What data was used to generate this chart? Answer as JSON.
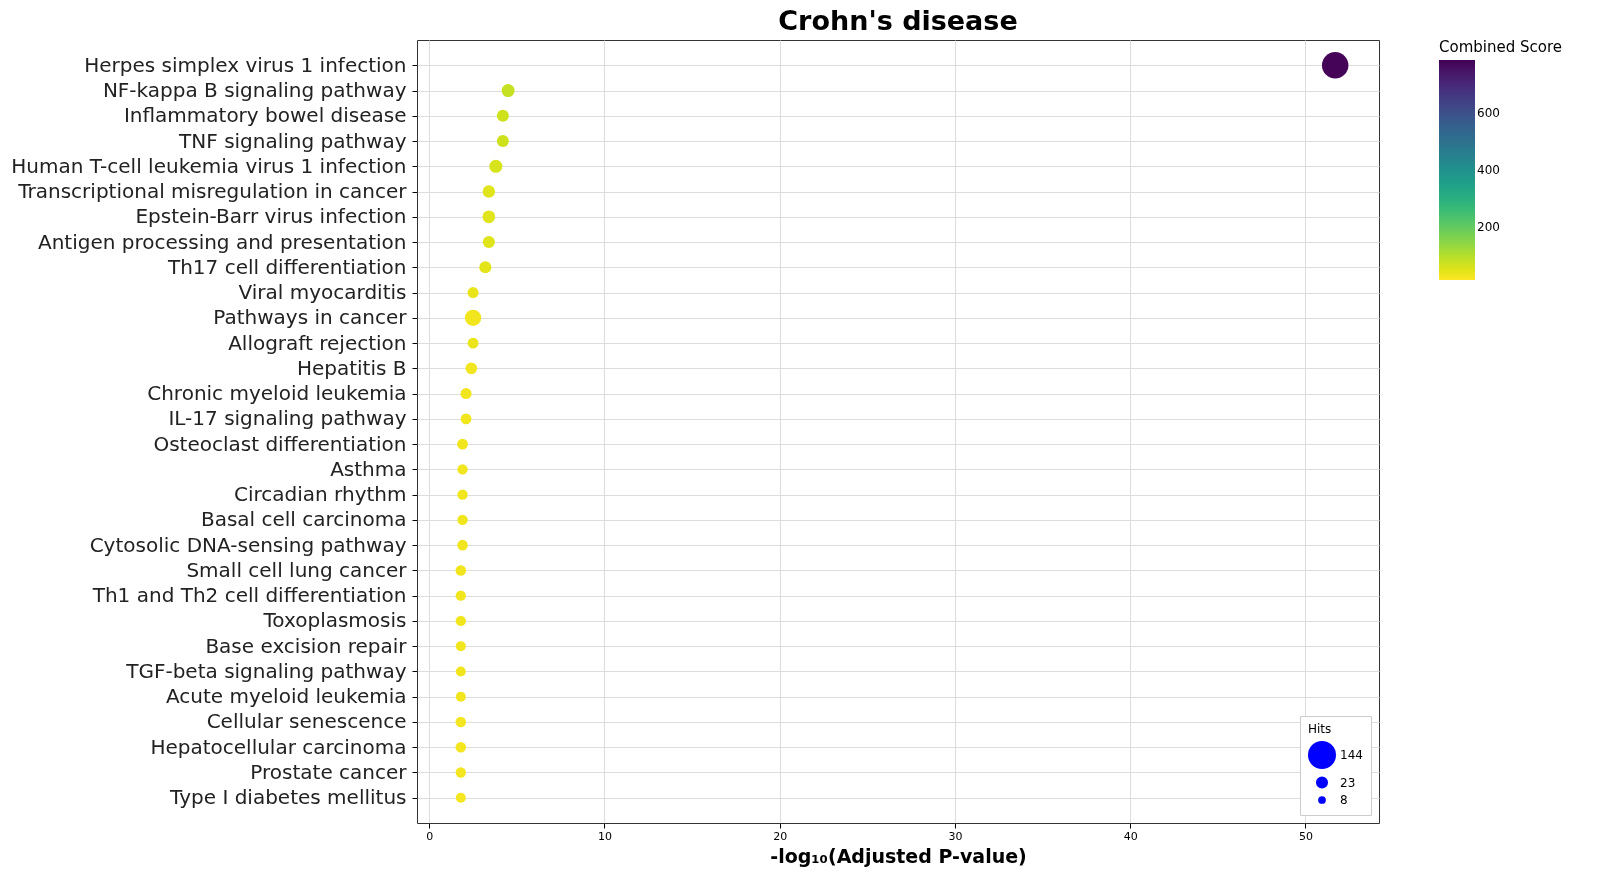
{
  "chart_data": {
    "type": "bubble",
    "title": "Crohn's disease",
    "xlabel": "-log₁₀(Adjusted P-value)",
    "clabel": "Combined Score",
    "legend_title": "Hits",
    "categories": [
      "Herpes simplex virus 1 infection",
      "NF-kappa B signaling pathway",
      "Inflammatory bowel disease",
      "TNF signaling pathway",
      "Human T-cell leukemia virus 1 infection",
      "Transcriptional misregulation in cancer",
      "Epstein-Barr virus infection",
      "Antigen processing and presentation",
      "Th17 cell differentiation",
      "Viral myocarditis",
      "Pathways in cancer",
      "Allograft rejection",
      "Hepatitis B",
      "Chronic myeloid leukemia",
      "IL-17 signaling pathway",
      "Osteoclast differentiation",
      "Asthma",
      "Circadian rhythm",
      "Basal cell carcinoma",
      "Cytosolic DNA-sensing pathway",
      "Small cell lung cancer",
      "Th1 and Th2 cell differentiation",
      "Toxoplasmosis",
      "Base excision repair",
      "TGF-beta signaling pathway",
      "Acute myeloid leukemia",
      "Cellular senescence",
      "Hepatocellular carcinoma",
      "Prostate cancer",
      "Type I diabetes mellitus"
    ],
    "values": [
      51.7,
      4.5,
      4.2,
      4.2,
      3.8,
      3.4,
      3.4,
      3.4,
      3.2,
      2.5,
      2.5,
      2.5,
      2.4,
      2.1,
      2.1,
      1.9,
      1.9,
      1.9,
      1.9,
      1.9,
      1.8,
      1.8,
      1.8,
      1.8,
      1.8,
      1.8,
      1.8,
      1.8,
      1.8,
      1.8
    ],
    "sizes": [
      144,
      35,
      30,
      30,
      35,
      32,
      33,
      30,
      30,
      25,
      55,
      24,
      28,
      25,
      24,
      24,
      22,
      22,
      22,
      23,
      23,
      22,
      22,
      21,
      21,
      21,
      23,
      23,
      22,
      21
    ],
    "cvalues": [
      780,
      80,
      70,
      70,
      60,
      50,
      50,
      50,
      45,
      40,
      30,
      40,
      30,
      30,
      30,
      30,
      30,
      30,
      30,
      30,
      30,
      30,
      30,
      30,
      30,
      30,
      25,
      25,
      25,
      25
    ],
    "size_legend": [
      144,
      23,
      8
    ],
    "clim": [
      14,
      786
    ],
    "cticks": [
      200,
      400,
      600
    ],
    "xlim": [
      -0.7,
      54.2
    ],
    "xticks": [
      0,
      10,
      20,
      30,
      40,
      50
    ],
    "grid": true,
    "orientation": "horizontal"
  }
}
